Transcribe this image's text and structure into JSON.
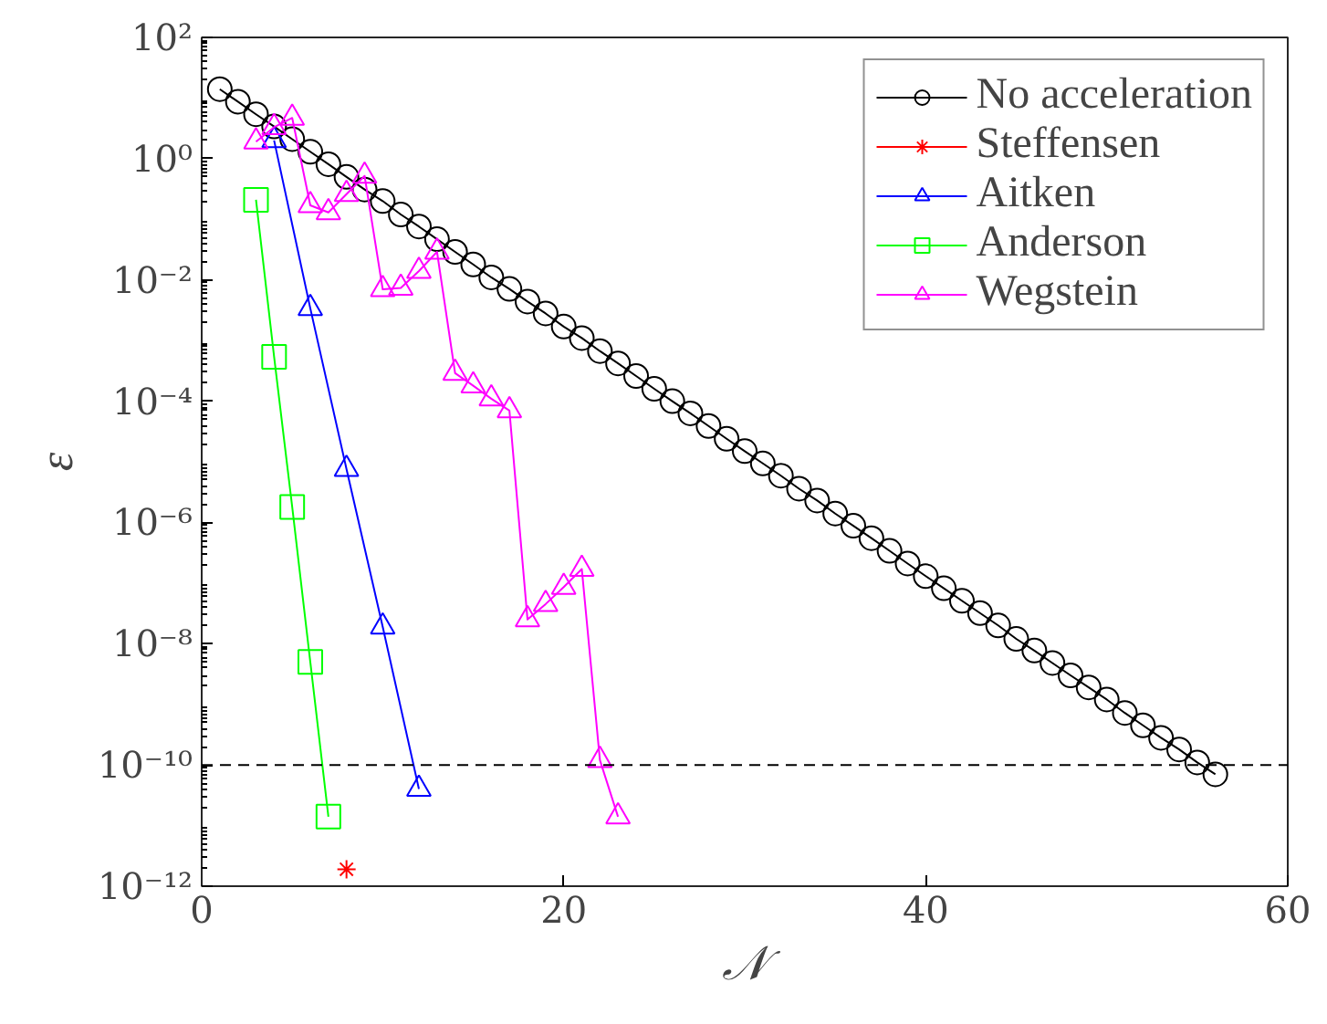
{
  "chart_data": {
    "type": "line",
    "xlabel": "𝒩",
    "ylabel": "ε",
    "log": "y",
    "grid": false,
    "legend": "top right",
    "line_style": "solid",
    "xlim": [
      0,
      60
    ],
    "xticks": [
      0,
      20,
      40,
      60
    ],
    "ylim": [
      1e-12,
      100
    ],
    "yticks": [
      {
        "value": 1e-12,
        "label": "10⁻¹²"
      },
      {
        "value": 1e-10,
        "label": "10⁻¹⁰"
      },
      {
        "value": 1e-08,
        "label": "10⁻⁸"
      },
      {
        "value": 1e-06,
        "label": "10⁻⁶"
      },
      {
        "value": 0.0001,
        "label": "10⁻⁴"
      },
      {
        "value": 0.01,
        "label": "10⁻²"
      },
      {
        "value": 1,
        "label": "10⁰"
      },
      {
        "value": 100,
        "label": "10²"
      }
    ],
    "ref_lines": [
      {
        "axis": "y",
        "value": 1e-10,
        "color": "#000000",
        "line_style": "dashed"
      }
    ],
    "series": [
      {
        "name": "No acceleration",
        "color": "#000000",
        "marker": "circle",
        "x": [
          1,
          2,
          3,
          4,
          5,
          6,
          7,
          8,
          9,
          10,
          11,
          12,
          13,
          14,
          15,
          16,
          17,
          18,
          19,
          20,
          21,
          22,
          23,
          24,
          25,
          26,
          27,
          28,
          29,
          30,
          31,
          32,
          33,
          34,
          35,
          36,
          37,
          38,
          39,
          40,
          41,
          42,
          43,
          44,
          45,
          46,
          47,
          48,
          49,
          50,
          51,
          52,
          53,
          54,
          55,
          56
        ],
        "values": [
          14,
          8.7,
          5.4,
          3.4,
          2.1,
          1.3,
          0.81,
          0.5,
          0.31,
          0.2,
          0.12,
          0.076,
          0.047,
          0.029,
          0.018,
          0.011,
          0.0071,
          0.0044,
          0.0028,
          0.0017,
          0.0011,
          0.00067,
          0.00042,
          0.00026,
          0.00016,
          0.0001,
          6.3e-05,
          3.9e-05,
          2.4e-05,
          1.5e-05,
          9.4e-06,
          5.9e-06,
          3.6e-06,
          2.3e-06,
          1.4e-06,
          8.8e-07,
          5.5e-07,
          3.4e-07,
          2.1e-07,
          1.3e-07,
          8.2e-08,
          5.1e-08,
          3.2e-08,
          2e-08,
          1.2e-08,
          7.7e-09,
          4.8e-09,
          3e-09,
          1.9e-09,
          1.2e-09,
          7.2e-10,
          4.5e-10,
          2.8e-10,
          1.8e-10,
          1.1e-10,
          7e-11
        ]
      },
      {
        "name": "Steffensen",
        "color": "#ff0000",
        "marker": "cross",
        "x": [
          8
        ],
        "values": [
          1.9e-12
        ]
      },
      {
        "name": "Aitken",
        "color": "#0000ff",
        "marker": "triangle",
        "x": [
          4,
          6,
          8,
          10,
          12
        ],
        "values": [
          2.0,
          0.0034,
          7.6e-06,
          1.9e-08,
          4e-11
        ]
      },
      {
        "name": "Anderson",
        "color": "#00ff00",
        "marker": "square",
        "x": [
          3,
          4,
          5,
          6,
          7
        ],
        "values": [
          0.21,
          0.00054,
          1.8e-06,
          5e-09,
          1.4e-11
        ]
      },
      {
        "name": "Wegstein",
        "color": "#ff00ff",
        "marker": "triangle",
        "x": [
          3,
          4,
          5,
          6,
          7,
          8,
          9,
          10,
          11,
          12,
          13,
          14,
          15,
          16,
          17,
          18,
          19,
          20,
          21,
          22,
          23
        ],
        "values": [
          1.9,
          3.3,
          4.7,
          0.17,
          0.13,
          0.26,
          0.52,
          0.007,
          0.0074,
          0.014,
          0.029,
          0.00029,
          0.00018,
          0.00011,
          7e-05,
          2.5e-08,
          4.5e-08,
          8.6e-08,
          1.7e-07,
          1.2e-10,
          1.4e-11
        ]
      }
    ]
  }
}
